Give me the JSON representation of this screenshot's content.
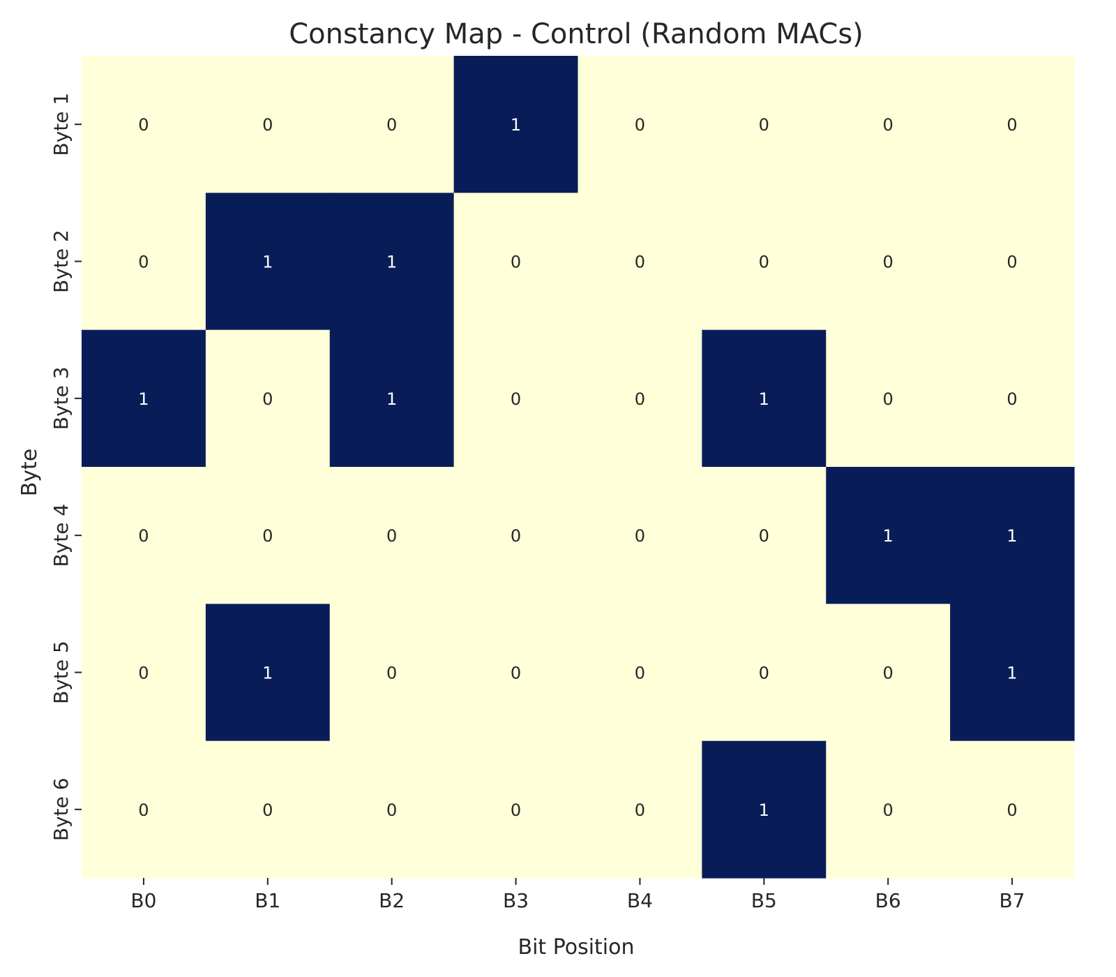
{
  "chart_data": {
    "type": "heatmap",
    "title": "Constancy Map - Control (Random MACs)",
    "xlabel": "Bit Position",
    "ylabel": "Byte",
    "x_categories": [
      "B0",
      "B1",
      "B2",
      "B3",
      "B4",
      "B5",
      "B6",
      "B7"
    ],
    "y_categories": [
      "Byte 1",
      "Byte 2",
      "Byte 3",
      "Byte 4",
      "Byte 5",
      "Byte 6"
    ],
    "values": [
      [
        0,
        0,
        0,
        1,
        0,
        0,
        0,
        0
      ],
      [
        0,
        1,
        1,
        0,
        0,
        0,
        0,
        0
      ],
      [
        1,
        0,
        1,
        0,
        0,
        1,
        0,
        0
      ],
      [
        0,
        0,
        0,
        0,
        0,
        0,
        1,
        1
      ],
      [
        0,
        1,
        0,
        0,
        0,
        0,
        0,
        1
      ],
      [
        0,
        0,
        0,
        0,
        0,
        1,
        0,
        0
      ]
    ],
    "value_range": [
      0,
      1
    ],
    "annotated": true,
    "colorbar": false,
    "colors": {
      "low": "#ffffd9",
      "high": "#081d58",
      "text_on_low": "#262626",
      "text_on_high": "#ffffff"
    }
  }
}
